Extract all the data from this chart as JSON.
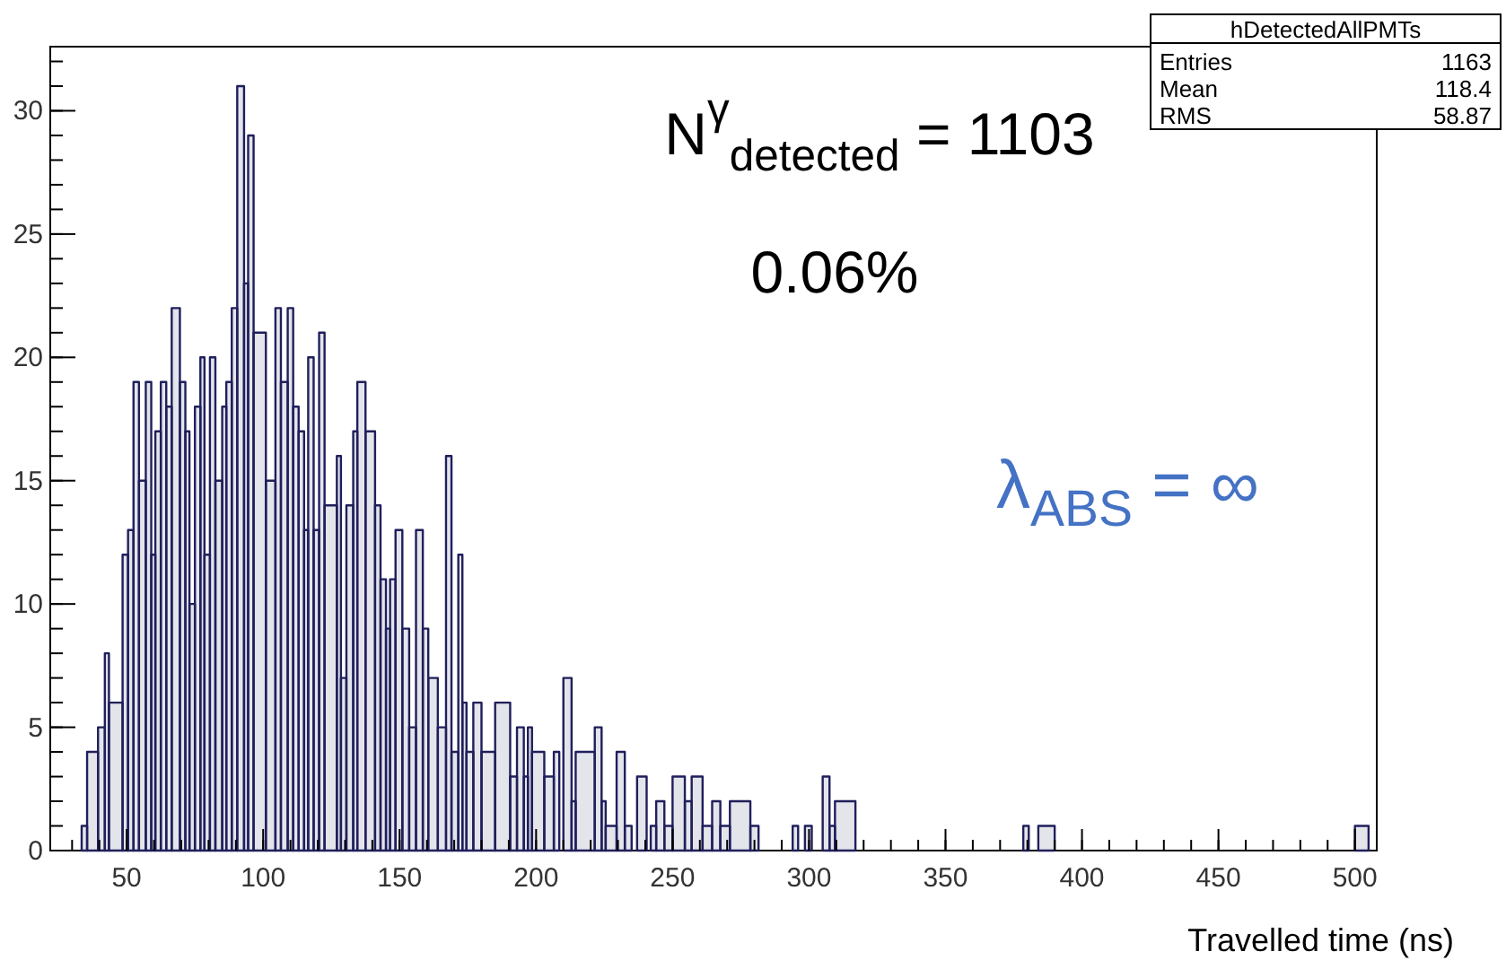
{
  "chart_data": {
    "type": "histogram",
    "title": "hDetectedAllPMTs",
    "xlabel": "Travelled time (ns)",
    "bins": [
      33.5,
      35.5,
      39.5,
      42,
      43.5,
      48.5,
      50.5,
      52.5,
      54.5,
      57,
      59,
      60.5,
      62.5,
      64.5,
      66.5,
      69.5,
      71.5,
      73,
      75,
      77,
      78.5,
      80.5,
      82.5,
      85,
      86.5,
      88.5,
      90.5,
      93,
      94.5,
      96.5,
      101,
      104.5,
      106.5,
      109,
      111,
      113,
      115,
      116.5,
      118.5,
      120.5,
      122.5,
      127,
      128.5,
      130.5,
      133,
      134.5,
      137.5,
      141,
      143,
      145,
      146.5,
      148.5,
      151,
      153.5,
      156,
      158.5,
      160.5,
      164,
      167,
      169,
      171.5,
      173,
      174.5,
      177,
      180,
      185,
      190.5,
      193,
      195.5,
      197,
      198.5,
      203,
      206.5,
      208.5,
      210,
      213,
      214.5,
      221.5,
      224,
      225.5,
      229.5,
      232.5,
      235,
      237,
      240.5,
      242,
      244,
      247,
      250,
      254.5,
      257,
      261,
      264.5,
      267.5,
      271,
      278.5,
      281.5,
      294,
      296,
      298.5,
      301,
      305,
      307.5,
      309.5,
      317,
      378.5,
      380.5,
      384,
      390,
      500,
      505
    ],
    "values": [
      1,
      4,
      5,
      8,
      6,
      12,
      13,
      19,
      15,
      19,
      12,
      17,
      19,
      18,
      22,
      19,
      17,
      10,
      18,
      20,
      12,
      20,
      15,
      18,
      19,
      22,
      31,
      23,
      29,
      21,
      15,
      22,
      19,
      22,
      18,
      17,
      13,
      20,
      13,
      21,
      14,
      16,
      7,
      14,
      17,
      19,
      17,
      14,
      11,
      9,
      11,
      13,
      9,
      5,
      13,
      9,
      7,
      5,
      16,
      4,
      12,
      6,
      4,
      6,
      4,
      6,
      3,
      5,
      3,
      5,
      4,
      3,
      4,
      0,
      7,
      2,
      4,
      5,
      2,
      1,
      4,
      1,
      0,
      3,
      0,
      1,
      2,
      1,
      3,
      2,
      3,
      1,
      2,
      1,
      2,
      1,
      0,
      1,
      0,
      1,
      0,
      3,
      1,
      2,
      0,
      1,
      0,
      1,
      0,
      1
    ],
    "color": "#1f1f5c",
    "xlim": [
      22,
      508
    ],
    "ylim": [
      0,
      32.6
    ],
    "xticks": [
      50,
      100,
      150,
      200,
      250,
      300,
      350,
      400,
      450,
      500
    ],
    "yticks": [
      0,
      5,
      10,
      15,
      20,
      25,
      30
    ],
    "annotations": [
      "N$^{γ}$$_{detected}$ = 1103",
      "0.06%",
      "λ$_{ABS}$ = ∞",
      "Entries",
      "1163",
      "Mean",
      "118.4",
      "RMS",
      "58.87"
    ]
  }
}
